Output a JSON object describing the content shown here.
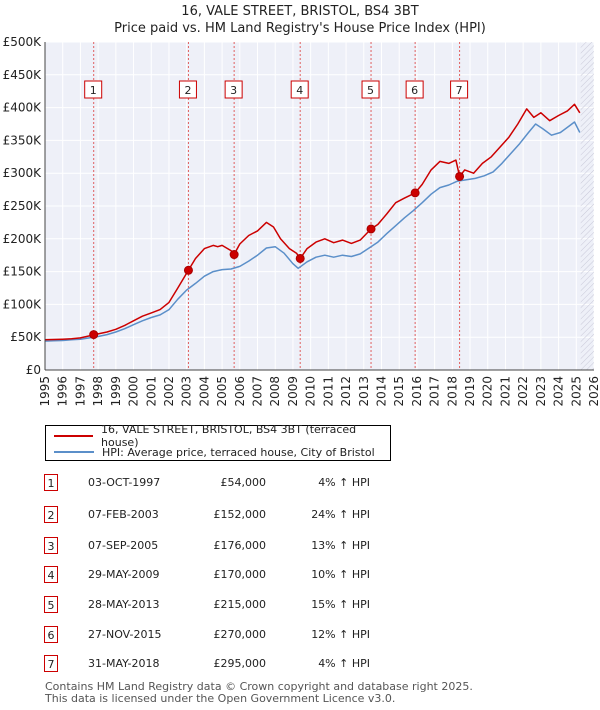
{
  "chart_data": {
    "type": "line",
    "title": "16, VALE STREET, BRISTOL, BS4 3BT",
    "subtitle": "Price paid vs. HM Land Registry's House Price Index (HPI)",
    "xlabel": "",
    "ylabel": "",
    "xlim": [
      1995,
      2026
    ],
    "ylim": [
      0,
      500000
    ],
    "x_ticks": [
      "1995",
      "1996",
      "1997",
      "1998",
      "1999",
      "2000",
      "2001",
      "2002",
      "2003",
      "2004",
      "2005",
      "2006",
      "2007",
      "2008",
      "2009",
      "2010",
      "2011",
      "2012",
      "2013",
      "2014",
      "2015",
      "2016",
      "2017",
      "2018",
      "2019",
      "2020",
      "2021",
      "2022",
      "2023",
      "2024",
      "2025",
      "2026"
    ],
    "y_ticks": [
      {
        "value": 0,
        "label": "£0"
      },
      {
        "value": 50000,
        "label": "£50K"
      },
      {
        "value": 100000,
        "label": "£100K"
      },
      {
        "value": 150000,
        "label": "£150K"
      },
      {
        "value": 200000,
        "label": "£200K"
      },
      {
        "value": 250000,
        "label": "£250K"
      },
      {
        "value": 300000,
        "label": "£300K"
      },
      {
        "value": 350000,
        "label": "£350K"
      },
      {
        "value": 400000,
        "label": "£400K"
      },
      {
        "value": 450000,
        "label": "£450K"
      },
      {
        "value": 500000,
        "label": "£500K"
      }
    ],
    "grid": true,
    "future_hatch_from": 2025.25,
    "series": [
      {
        "name": "16, VALE STREET, BRISTOL, BS4 3BT (terraced house)",
        "color": "#cc0000",
        "x": [
          1995.0,
          1995.5,
          1996.0,
          1996.5,
          1997.0,
          1997.5,
          1997.75,
          1998.0,
          1998.5,
          1999.0,
          1999.5,
          2000.0,
          2000.5,
          2001.0,
          2001.5,
          2002.0,
          2002.5,
          2003.1,
          2003.5,
          2004.0,
          2004.5,
          2004.75,
          2005.0,
          2005.5,
          2005.68,
          2006.0,
          2006.5,
          2007.0,
          2007.5,
          2007.9,
          2008.3,
          2008.8,
          2009.2,
          2009.41,
          2009.8,
          2010.3,
          2010.8,
          2011.3,
          2011.8,
          2012.3,
          2012.8,
          2013.41,
          2013.8,
          2014.3,
          2014.8,
          2015.3,
          2015.9,
          2016.3,
          2016.8,
          2017.3,
          2017.8,
          2018.2,
          2018.41,
          2018.7,
          2019.2,
          2019.7,
          2020.2,
          2020.7,
          2021.2,
          2021.7,
          2022.2,
          2022.6,
          2023.0,
          2023.5,
          2024.0,
          2024.5,
          2024.9,
          2025.2
        ],
        "values": [
          46000,
          46500,
          47000,
          47500,
          49000,
          52000,
          54000,
          55000,
          58000,
          62000,
          68000,
          75000,
          82000,
          87000,
          92000,
          103000,
          125000,
          152000,
          170000,
          185000,
          190000,
          188000,
          190000,
          182000,
          176000,
          192000,
          205000,
          212000,
          225000,
          218000,
          200000,
          185000,
          178000,
          170000,
          185000,
          195000,
          200000,
          194000,
          198000,
          193000,
          198000,
          215000,
          222000,
          238000,
          255000,
          262000,
          270000,
          283000,
          305000,
          318000,
          315000,
          320000,
          295000,
          305000,
          300000,
          315000,
          325000,
          340000,
          355000,
          375000,
          398000,
          385000,
          392000,
          380000,
          388000,
          395000,
          405000,
          392000
        ]
      },
      {
        "name": "HPI: Average price, terraced house, City of Bristol",
        "color": "#5b8fc9",
        "x": [
          1995.0,
          1995.5,
          1996.0,
          1996.5,
          1997.0,
          1997.5,
          1998.0,
          1998.5,
          1999.0,
          1999.5,
          2000.0,
          2000.5,
          2001.0,
          2001.5,
          2002.0,
          2002.5,
          2003.0,
          2003.5,
          2004.0,
          2004.5,
          2005.0,
          2005.5,
          2006.0,
          2006.5,
          2007.0,
          2007.5,
          2008.0,
          2008.5,
          2009.0,
          2009.3,
          2009.8,
          2010.3,
          2010.8,
          2011.3,
          2011.8,
          2012.3,
          2012.8,
          2013.3,
          2013.8,
          2014.3,
          2014.8,
          2015.3,
          2015.8,
          2016.3,
          2016.8,
          2017.3,
          2017.8,
          2018.3,
          2018.8,
          2019.3,
          2019.8,
          2020.3,
          2020.8,
          2021.3,
          2021.8,
          2022.3,
          2022.7,
          2023.1,
          2023.6,
          2024.1,
          2024.6,
          2024.9,
          2025.2
        ],
        "values": [
          44000,
          44500,
          45000,
          46000,
          47000,
          49000,
          51000,
          54000,
          58000,
          63000,
          69000,
          75000,
          80000,
          84000,
          92000,
          108000,
          122000,
          132000,
          143000,
          150000,
          153000,
          154000,
          158000,
          166000,
          175000,
          186000,
          188000,
          178000,
          162000,
          155000,
          165000,
          172000,
          175000,
          172000,
          175000,
          173000,
          177000,
          186000,
          195000,
          208000,
          220000,
          232000,
          243000,
          255000,
          268000,
          278000,
          282000,
          288000,
          290000,
          292000,
          296000,
          302000,
          315000,
          330000,
          345000,
          362000,
          375000,
          368000,
          358000,
          362000,
          372000,
          378000,
          362000
        ]
      }
    ],
    "sales": [
      {
        "id": "1",
        "x": 1997.75,
        "value": 54000
      },
      {
        "id": "2",
        "x": 2003.1,
        "value": 152000
      },
      {
        "id": "3",
        "x": 2005.68,
        "value": 176000
      },
      {
        "id": "4",
        "x": 2009.41,
        "value": 170000
      },
      {
        "id": "5",
        "x": 2013.41,
        "value": 215000
      },
      {
        "id": "6",
        "x": 2015.9,
        "value": 270000
      },
      {
        "id": "7",
        "x": 2018.41,
        "value": 295000
      }
    ]
  },
  "legend": {
    "property_label": "16, VALE STREET, BRISTOL, BS4 3BT (terraced house)",
    "hpi_label": "HPI: Average price, terraced house, City of Bristol"
  },
  "transactions": [
    {
      "id": "1",
      "date": "03-OCT-1997",
      "price": "£54,000",
      "hpi": "4% ↑ HPI"
    },
    {
      "id": "2",
      "date": "07-FEB-2003",
      "price": "£152,000",
      "hpi": "24% ↑ HPI"
    },
    {
      "id": "3",
      "date": "07-SEP-2005",
      "price": "£176,000",
      "hpi": "13% ↑ HPI"
    },
    {
      "id": "4",
      "date": "29-MAY-2009",
      "price": "£170,000",
      "hpi": "10% ↑ HPI"
    },
    {
      "id": "5",
      "date": "28-MAY-2013",
      "price": "£215,000",
      "hpi": "15% ↑ HPI"
    },
    {
      "id": "6",
      "date": "27-NOV-2015",
      "price": "£270,000",
      "hpi": "12% ↑ HPI"
    },
    {
      "id": "7",
      "date": "31-MAY-2018",
      "price": "£295,000",
      "hpi": "4% ↑ HPI"
    }
  ],
  "footer": {
    "line1": "Contains HM Land Registry data © Crown copyright and database right 2025.",
    "line2": "This data is licensed under the Open Government Licence v3.0."
  }
}
